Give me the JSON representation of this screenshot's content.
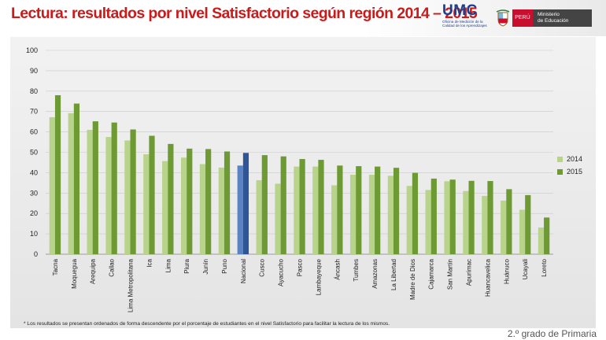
{
  "header": {
    "title": "Lectura: resultados por nivel Satisfactorio según región 2014 – 2015",
    "umc_logo": "UMC",
    "umc_subtitle": [
      "Oficina de Medición de la",
      "Calidad de los Aprendizajes"
    ],
    "peru_label": "PERÚ",
    "ministry_label": [
      "Ministerio",
      "de Educación"
    ]
  },
  "footer": {
    "footnote": "* Los resultados se presentan ordenados de forma descendente por el porcentaje de estudiantes en el nivel Satisfactorio para facilitar la lectura de los mismos.",
    "grade": "2.º grado de Primaria"
  },
  "colors": {
    "series_2014": "#b8d48a",
    "series_2015": "#6e9a34",
    "national_2014": "#5b83c4",
    "national_2015": "#2e5596"
  },
  "chart_data": {
    "type": "bar",
    "categories": [
      "Tacna",
      "Moquegua",
      "Arequipa",
      "Callao",
      "Lima Metropolitana",
      "Ica",
      "Lima",
      "Piura",
      "Junín",
      "Puno",
      "Nacional",
      "Cusco",
      "Ayacucho",
      "Pasco",
      "Lambayeque",
      "Áncash",
      "Tumbes",
      "Amazonas",
      "La Libertad",
      "Madre de Dios",
      "Cajamarca",
      "San Martín",
      "Apurímac",
      "Huancavelica",
      "Huánuco",
      "Ucayali",
      "Loreto"
    ],
    "series": [
      {
        "name": "2014",
        "values": [
          67.2,
          69.2,
          61.0,
          57.5,
          55.8,
          49.0,
          45.7,
          47.4,
          44.2,
          42.5,
          43.5,
          36.3,
          34.6,
          43.0,
          43.0,
          33.8,
          39.0,
          39.0,
          38.5,
          33.5,
          31.5,
          35.8,
          31.0,
          28.6,
          26.3,
          21.8,
          13.1
        ]
      },
      {
        "name": "2015",
        "values": [
          78.0,
          73.9,
          65.2,
          64.6,
          61.2,
          58.1,
          54.1,
          51.8,
          51.6,
          50.4,
          49.7,
          48.6,
          48.0,
          46.7,
          46.3,
          43.5,
          43.2,
          43.0,
          42.4,
          39.9,
          37.1,
          36.6,
          36.0,
          35.9,
          31.9,
          29.0,
          18.0
        ]
      }
    ],
    "highlight_category": "Nacional",
    "ylim": [
      0,
      100
    ],
    "yticks": [
      0,
      10,
      20,
      30,
      40,
      50,
      60,
      70,
      80,
      90,
      100
    ],
    "legend_position": "right",
    "grid": true
  }
}
